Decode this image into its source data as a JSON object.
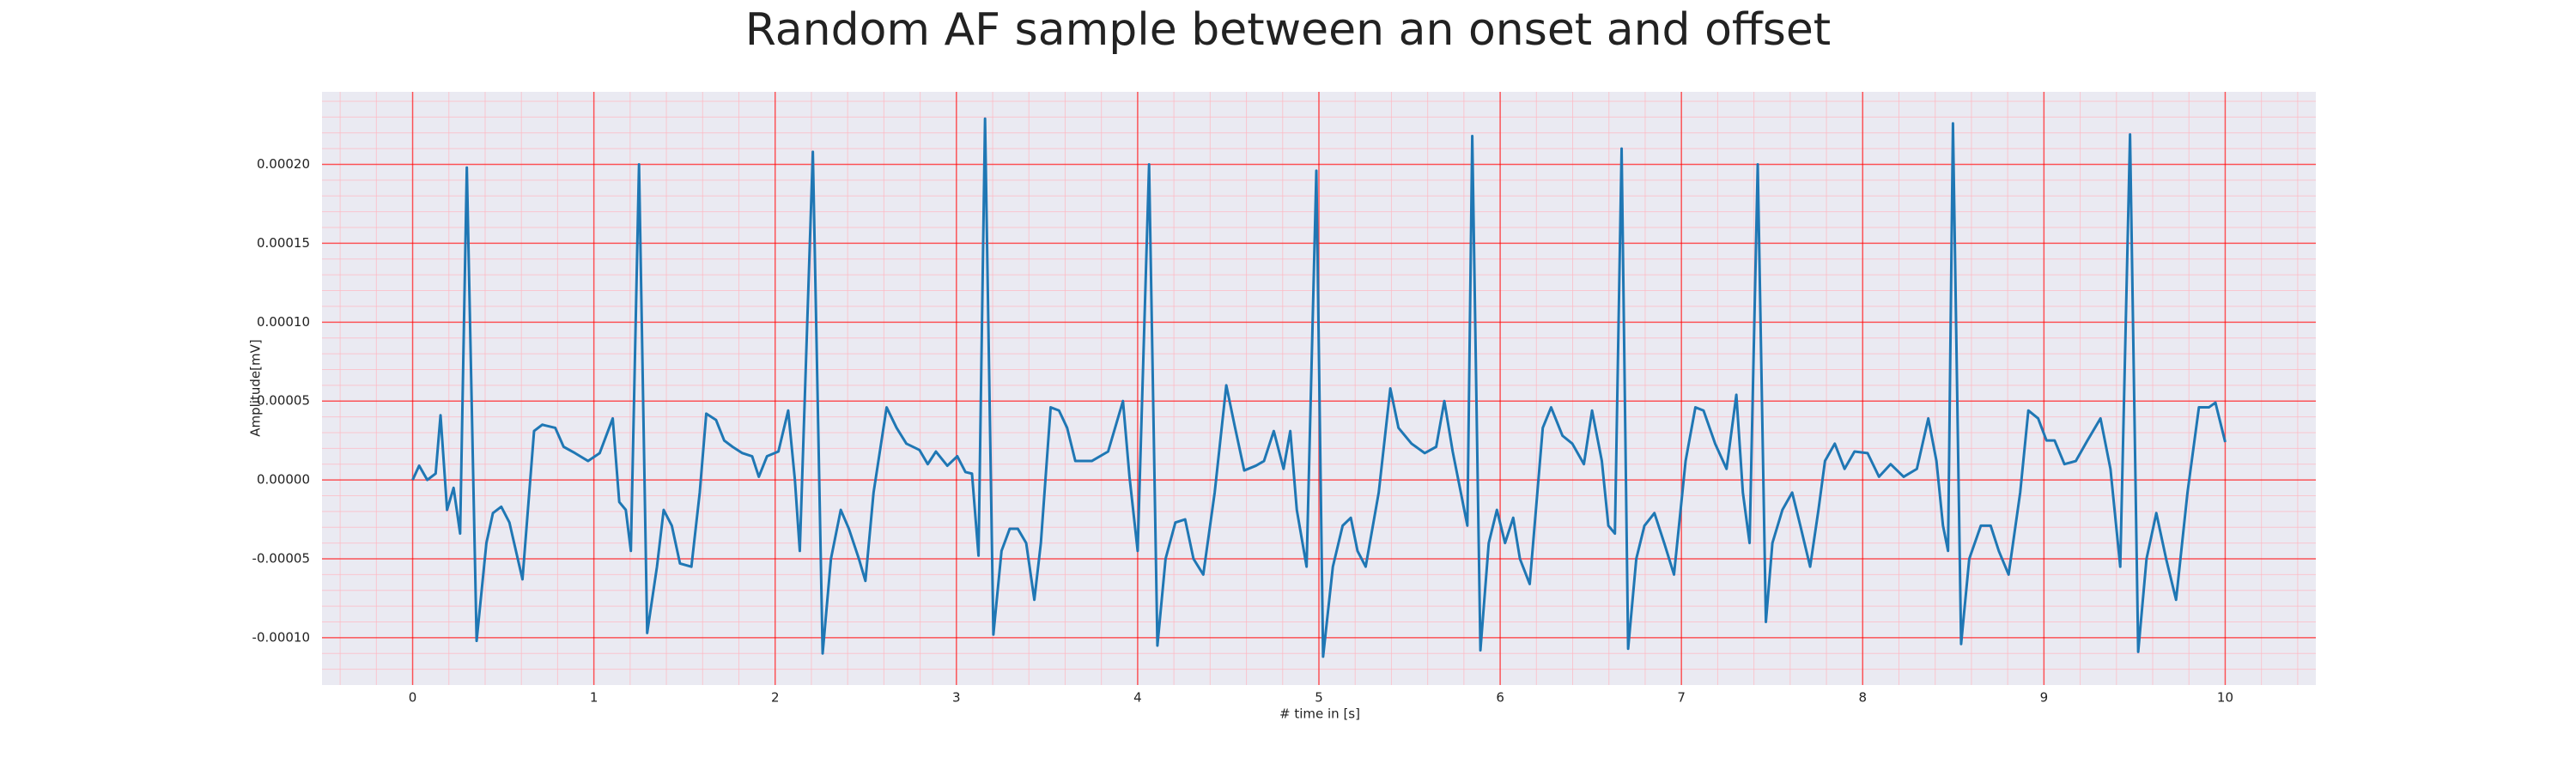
{
  "chart_data": {
    "type": "line",
    "title": "Random AF sample between an onset and offset",
    "xlabel": "# time in [s]",
    "ylabel": "Amplitude[mV]",
    "xlim": [
      -0.5,
      10.5
    ],
    "ylim": [
      -0.00013,
      0.000246
    ],
    "xticks": [
      0,
      1,
      2,
      3,
      4,
      5,
      6,
      7,
      8,
      9,
      10
    ],
    "yticks": [
      {
        "value": -0.0001,
        "label": "-0.00010"
      },
      {
        "value": -5e-05,
        "label": "-0.00005"
      },
      {
        "value": 0,
        "label": "0.00000"
      },
      {
        "value": 5e-05,
        "label": "0.00005"
      },
      {
        "value": 0.0001,
        "label": "0.00010"
      },
      {
        "value": 0.00015,
        "label": "0.00015"
      },
      {
        "value": 0.0002,
        "label": "0.00020"
      }
    ],
    "minor_xticks": [
      -0.4,
      -0.2,
      0,
      0.2,
      0.4,
      0.6,
      0.8,
      1,
      1.2,
      1.4,
      1.6,
      1.8,
      2,
      2.2,
      2.4,
      2.6,
      2.8,
      3,
      3.2,
      3.4,
      3.6,
      3.8,
      4,
      4.2,
      4.4,
      4.6,
      4.8,
      5,
      5.2,
      5.4,
      5.6,
      5.8,
      6,
      6.2,
      6.4,
      6.6,
      6.8,
      7,
      7.2,
      7.4,
      7.6,
      7.8,
      8,
      8.2,
      8.4,
      8.6,
      8.8,
      9,
      9.2,
      9.4,
      9.6,
      9.8,
      10,
      10.2,
      10.4
    ],
    "minor_yticks": [
      -0.00012,
      -0.00011,
      -0.0001,
      -9e-05,
      -8e-05,
      -7e-05,
      -6e-05,
      -5e-05,
      -4e-05,
      -3e-05,
      -2e-05,
      -1e-05,
      0,
      1e-05,
      2e-05,
      3e-05,
      4e-05,
      5e-05,
      6e-05,
      7e-05,
      8e-05,
      9e-05,
      0.0001,
      0.00011,
      0.00012,
      0.00013,
      0.00014,
      0.00015,
      0.00016,
      0.00017,
      0.00018,
      0.00019,
      0.0002,
      0.00021,
      0.00022,
      0.00023,
      0.00024
    ],
    "grid": true,
    "minor_grid": true,
    "color": "#1f77b4",
    "x": [
      0,
      0.036,
      0.081,
      0.127,
      0.154,
      0.19,
      0.226,
      0.262,
      0.299,
      0.353,
      0.407,
      0.443,
      0.489,
      0.534,
      0.606,
      0.67,
      0.715,
      0.787,
      0.833,
      0.896,
      0.968,
      1.032,
      1.104,
      1.14,
      1.176,
      1.204,
      1.249,
      1.294,
      1.348,
      1.385,
      1.43,
      1.475,
      1.538,
      1.584,
      1.62,
      1.674,
      1.719,
      1.765,
      1.819,
      1.873,
      1.91,
      1.955,
      2.018,
      2.072,
      2.109,
      2.136,
      2.208,
      2.262,
      2.308,
      2.362,
      2.407,
      2.462,
      2.498,
      2.543,
      2.615,
      2.67,
      2.724,
      2.796,
      2.842,
      2.887,
      2.95,
      3.005,
      3.05,
      3.086,
      3.122,
      3.158,
      3.204,
      3.249,
      3.294,
      3.339,
      3.385,
      3.43,
      3.466,
      3.52,
      3.566,
      3.611,
      3.656,
      3.747,
      3.837,
      3.919,
      3.955,
      4.0,
      4.063,
      4.109,
      4.154,
      4.208,
      4.262,
      4.308,
      4.362,
      4.425,
      4.489,
      4.534,
      4.588,
      4.652,
      4.697,
      4.751,
      4.805,
      4.842,
      4.878,
      4.932,
      4.986,
      5.023,
      5.077,
      5.131,
      5.176,
      5.213,
      5.258,
      5.33,
      5.394,
      5.439,
      5.511,
      5.584,
      5.647,
      5.692,
      5.738,
      5.783,
      5.819,
      5.846,
      5.891,
      5.937,
      5.982,
      6.027,
      6.072,
      6.109,
      6.163,
      6.235,
      6.281,
      6.344,
      6.398,
      6.462,
      6.507,
      6.561,
      6.597,
      6.633,
      6.67,
      6.706,
      6.751,
      6.796,
      6.851,
      6.905,
      6.959,
      7.023,
      7.077,
      7.122,
      7.186,
      7.249,
      7.303,
      7.339,
      7.376,
      7.421,
      7.466,
      7.502,
      7.557,
      7.611,
      7.656,
      7.71,
      7.756,
      7.792,
      7.846,
      7.9,
      7.955,
      8.027,
      8.09,
      8.154,
      8.226,
      8.299,
      8.362,
      8.407,
      8.443,
      8.471,
      8.498,
      8.543,
      8.588,
      8.652,
      8.706,
      8.751,
      8.805,
      8.869,
      8.914,
      8.968,
      9.014,
      9.059,
      9.113,
      9.176,
      9.24,
      9.312,
      9.367,
      9.421,
      9.475,
      9.52,
      9.566,
      9.62,
      9.674,
      9.729,
      9.792,
      9.855,
      9.91,
      9.946,
      10.0
    ],
    "values": [
      0,
      9e-06,
      0,
      4e-06,
      4.1e-05,
      -1.9e-05,
      -5e-06,
      -3.4e-05,
      0.000198,
      -0.000102,
      -4e-05,
      -2.1e-05,
      -1.7e-05,
      -2.7e-05,
      -6.3e-05,
      3.1e-05,
      3.5e-05,
      3.3e-05,
      2.1e-05,
      1.7e-05,
      1.2e-05,
      1.7e-05,
      3.9e-05,
      -1.4e-05,
      -1.9e-05,
      -4.5e-05,
      0.0002,
      -9.7e-05,
      -5.5e-05,
      -1.9e-05,
      -2.9e-05,
      -5.3e-05,
      -5.5e-05,
      -8e-06,
      4.2e-05,
      3.8e-05,
      2.5e-05,
      2.1e-05,
      1.7e-05,
      1.5e-05,
      2e-06,
      1.5e-05,
      1.8e-05,
      4.4e-05,
      0,
      -4.5e-05,
      0.000208,
      -0.00011,
      -5e-05,
      -1.9e-05,
      -3.1e-05,
      -5e-05,
      -6.4e-05,
      -8e-06,
      4.6e-05,
      3.3e-05,
      2.3e-05,
      1.9e-05,
      1e-05,
      1.8e-05,
      9e-06,
      1.5e-05,
      5e-06,
      4e-06,
      -4.8e-05,
      0.000229,
      -9.8e-05,
      -4.5e-05,
      -3.1e-05,
      -3.1e-05,
      -4e-05,
      -7.6e-05,
      -4e-05,
      4.6e-05,
      4.4e-05,
      3.3e-05,
      1.2e-05,
      1.2e-05,
      1.8e-05,
      5e-05,
      2e-06,
      -4.5e-05,
      0.0002,
      -0.000105,
      -5e-05,
      -2.7e-05,
      -2.5e-05,
      -5e-05,
      -6e-05,
      -8e-06,
      6e-05,
      3.5e-05,
      6e-06,
      9e-06,
      1.2e-05,
      3.1e-05,
      7e-06,
      3.1e-05,
      -1.9e-05,
      -5.5e-05,
      0.000196,
      -0.000112,
      -5.5e-05,
      -2.9e-05,
      -2.4e-05,
      -4.5e-05,
      -5.5e-05,
      -8e-06,
      5.8e-05,
      3.3e-05,
      2.3e-05,
      1.7e-05,
      2.1e-05,
      5e-05,
      1.8e-05,
      -8e-06,
      -2.9e-05,
      0.000218,
      -0.000108,
      -4e-05,
      -1.9e-05,
      -4e-05,
      -2.4e-05,
      -5e-05,
      -6.6e-05,
      3.3e-05,
      4.6e-05,
      2.8e-05,
      2.3e-05,
      1e-05,
      4.4e-05,
      1.2e-05,
      -2.9e-05,
      -3.4e-05,
      0.00021,
      -0.000107,
      -5e-05,
      -2.9e-05,
      -2.1e-05,
      -4e-05,
      -6e-05,
      1.2e-05,
      4.6e-05,
      4.4e-05,
      2.3e-05,
      7e-06,
      5.4e-05,
      -8e-06,
      -4e-05,
      0.0002,
      -9e-05,
      -4e-05,
      -1.9e-05,
      -8e-06,
      -2.9e-05,
      -5.5e-05,
      -1.9e-05,
      1.2e-05,
      2.3e-05,
      7e-06,
      1.8e-05,
      1.7e-05,
      2e-06,
      1e-05,
      2e-06,
      7e-06,
      3.9e-05,
      1.2e-05,
      -2.9e-05,
      -4.5e-05,
      0.000226,
      -0.000104,
      -5e-05,
      -2.9e-05,
      -2.9e-05,
      -4.5e-05,
      -6e-05,
      -8e-06,
      4.4e-05,
      3.9e-05,
      2.5e-05,
      2.5e-05,
      1e-05,
      1.2e-05,
      2.5e-05,
      3.9e-05,
      7e-06,
      -5.5e-05,
      0.000219,
      -0.000109,
      -5e-05,
      -2.1e-05,
      -5e-05,
      -7.6e-05,
      -8e-06,
      4.6e-05,
      4.6e-05,
      4.9e-05,
      2.4e-05
    ]
  }
}
